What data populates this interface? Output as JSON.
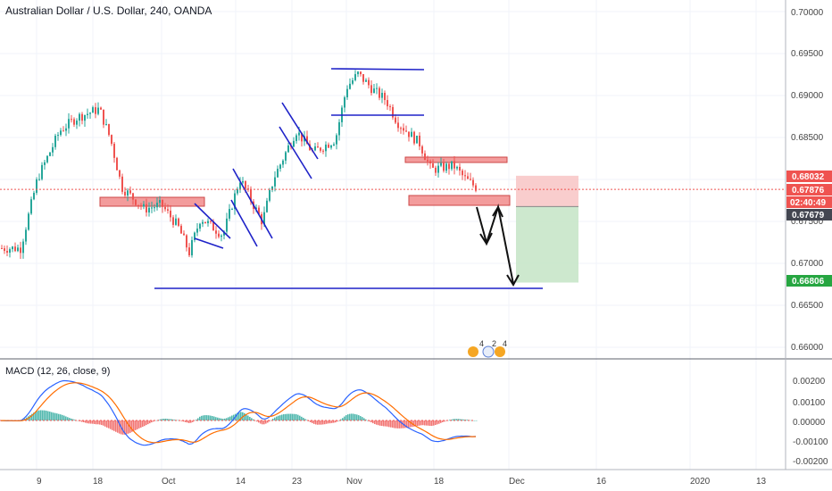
{
  "header": {
    "title": "Australian Dollar / U.S. Dollar, 240, OANDA"
  },
  "macd": {
    "title": "MACD (12, 26, close, 9)"
  },
  "price_axis": {
    "ticks": [
      "0.70000",
      "0.69500",
      "0.69000",
      "0.68500",
      "0.68000",
      "0.67500",
      "0.67000",
      "0.66500",
      "0.66000"
    ],
    "badges": [
      {
        "value": "0.68032",
        "color": "#ef5350"
      },
      {
        "value": "0.67876",
        "color": "#ef5350"
      },
      {
        "value": "02:40:49",
        "color": "#ef5350"
      },
      {
        "value": "0.67679",
        "color": "#434651"
      },
      {
        "value": "0.66806",
        "color": "#26a641"
      }
    ]
  },
  "macd_axis": {
    "ticks": [
      "0.00200",
      "0.00100",
      "0.00000",
      "-0.00100",
      "-0.00200"
    ]
  },
  "time_axis": {
    "labels": [
      "9",
      "18",
      "Oct",
      "14",
      "23",
      "Nov",
      "18",
      "Dec",
      "16",
      "2020",
      "13"
    ]
  },
  "events": {
    "labels": [
      "4",
      "2",
      "4"
    ]
  },
  "colors": {
    "up": "#26a69a",
    "down": "#ef5350",
    "drawing": "#1e22c8",
    "zone_fill": "#f28b8b",
    "zone_border": "#c62828"
  },
  "chart_data": {
    "type": "candlestick",
    "symbol": "AUDUSD",
    "timeframe": "240",
    "ylim": [
      0.6595,
      0.7005
    ],
    "close_path": [
      [
        "2019-09-02",
        0.672
      ],
      [
        "2019-09-05",
        0.68
      ],
      [
        "2019-09-09",
        0.6855
      ],
      [
        "2019-09-12",
        0.687
      ],
      [
        "2019-09-16",
        0.688
      ],
      [
        "2019-09-18",
        0.6845
      ],
      [
        "2019-09-20",
        0.679
      ],
      [
        "2019-09-24",
        0.6765
      ],
      [
        "2019-09-27",
        0.677
      ],
      [
        "2019-09-30",
        0.6745
      ],
      [
        "2019-10-02",
        0.6715
      ],
      [
        "2019-10-04",
        0.6755
      ],
      [
        "2019-10-08",
        0.6735
      ],
      [
        "2019-10-11",
        0.68
      ],
      [
        "2019-10-15",
        0.675
      ],
      [
        "2019-10-17",
        0.68
      ],
      [
        "2019-10-21",
        0.6855
      ],
      [
        "2019-10-24",
        0.683
      ],
      [
        "2019-10-28",
        0.6845
      ],
      [
        "2019-10-30",
        0.6905
      ],
      [
        "2019-11-01",
        0.692
      ],
      [
        "2019-11-04",
        0.69
      ],
      [
        "2019-11-06",
        0.689
      ],
      [
        "2019-11-08",
        0.6865
      ],
      [
        "2019-11-12",
        0.684
      ],
      [
        "2019-11-14",
        0.681
      ],
      [
        "2019-11-18",
        0.6815
      ],
      [
        "2019-11-20",
        0.68
      ],
      [
        "2019-11-22",
        0.679
      ]
    ],
    "current_price": 0.67876,
    "countdown": "02:40:49",
    "position": {
      "stop": 0.68032,
      "entry": 0.67679,
      "target": 0.66806
    },
    "macd": {
      "params": "12, 26, close, 9",
      "ylim": [
        -0.0023,
        0.0029
      ]
    }
  }
}
